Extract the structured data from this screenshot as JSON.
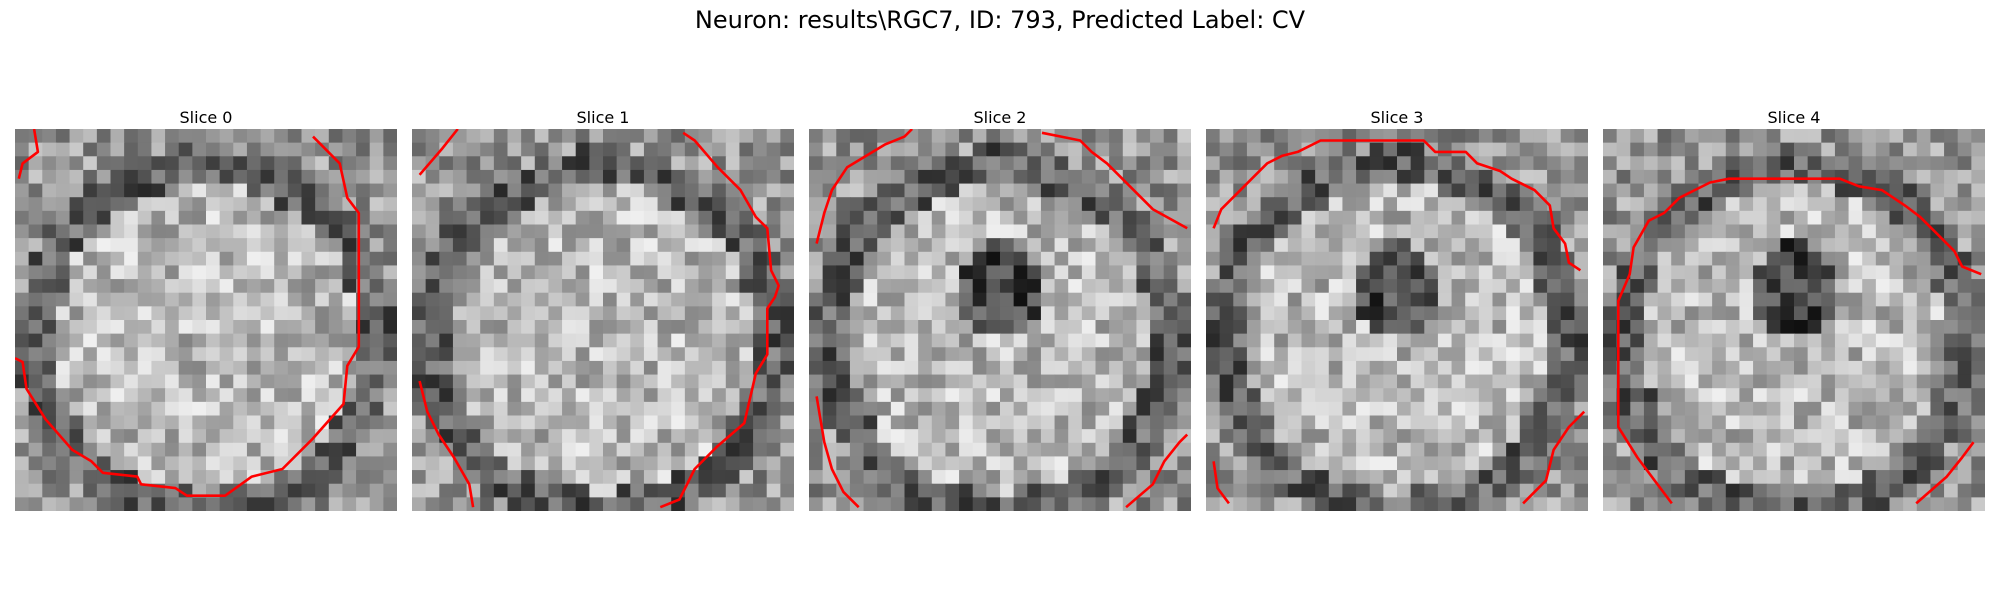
{
  "figure": {
    "title": "Neuron: results\\RGC7, ID: 793, Predicted Label: CV",
    "contour_color": "#ff0000",
    "colormap": "gray"
  },
  "slices": [
    {
      "title": "Slice 0",
      "seed": 11,
      "contour": [
        [
          [
            0.05,
            0.0
          ],
          [
            0.06,
            0.06
          ],
          [
            0.02,
            0.09
          ],
          [
            0.01,
            0.13
          ]
        ],
        [
          [
            0.78,
            0.02
          ],
          [
            0.85,
            0.09
          ],
          [
            0.87,
            0.18
          ],
          [
            0.9,
            0.22
          ],
          [
            0.9,
            0.57
          ],
          [
            0.87,
            0.62
          ],
          [
            0.86,
            0.72
          ],
          [
            0.78,
            0.81
          ],
          [
            0.7,
            0.89
          ],
          [
            0.62,
            0.91
          ],
          [
            0.55,
            0.96
          ],
          [
            0.45,
            0.96
          ],
          [
            0.42,
            0.94
          ],
          [
            0.33,
            0.93
          ],
          [
            0.32,
            0.91
          ],
          [
            0.23,
            0.9
          ],
          [
            0.2,
            0.87
          ],
          [
            0.15,
            0.84
          ],
          [
            0.08,
            0.76
          ],
          [
            0.03,
            0.68
          ],
          [
            0.02,
            0.61
          ],
          [
            0.0,
            0.6
          ]
        ]
      ]
    },
    {
      "title": "Slice 1",
      "seed": 23,
      "contour": [
        [
          [
            0.12,
            0.0
          ],
          [
            0.08,
            0.05
          ],
          [
            0.02,
            0.12
          ]
        ],
        [
          [
            0.71,
            0.01
          ],
          [
            0.74,
            0.03
          ],
          [
            0.8,
            0.1
          ],
          [
            0.86,
            0.16
          ],
          [
            0.9,
            0.23
          ],
          [
            0.93,
            0.26
          ],
          [
            0.94,
            0.37
          ],
          [
            0.96,
            0.41
          ],
          [
            0.95,
            0.44
          ],
          [
            0.93,
            0.47
          ],
          [
            0.93,
            0.59
          ],
          [
            0.9,
            0.64
          ],
          [
            0.87,
            0.77
          ],
          [
            0.8,
            0.83
          ],
          [
            0.74,
            0.89
          ],
          [
            0.7,
            0.97
          ],
          [
            0.65,
            0.99
          ]
        ],
        [
          [
            0.02,
            0.66
          ],
          [
            0.04,
            0.74
          ],
          [
            0.07,
            0.8
          ],
          [
            0.11,
            0.86
          ],
          [
            0.15,
            0.93
          ],
          [
            0.16,
            0.99
          ]
        ]
      ]
    },
    {
      "title": "Slice 2",
      "seed": 37,
      "contour": [
        [
          [
            0.02,
            0.3
          ],
          [
            0.04,
            0.22
          ],
          [
            0.06,
            0.16
          ],
          [
            0.1,
            0.1
          ],
          [
            0.15,
            0.07
          ],
          [
            0.2,
            0.04
          ],
          [
            0.25,
            0.02
          ],
          [
            0.27,
            0.0
          ]
        ],
        [
          [
            0.61,
            0.01
          ],
          [
            0.66,
            0.02
          ],
          [
            0.71,
            0.03
          ],
          [
            0.74,
            0.06
          ],
          [
            0.78,
            0.09
          ],
          [
            0.84,
            0.15
          ],
          [
            0.9,
            0.21
          ],
          [
            0.99,
            0.26
          ]
        ],
        [
          [
            0.02,
            0.7
          ],
          [
            0.04,
            0.82
          ],
          [
            0.06,
            0.89
          ],
          [
            0.09,
            0.95
          ],
          [
            0.13,
            0.99
          ]
        ],
        [
          [
            0.83,
            0.99
          ],
          [
            0.9,
            0.93
          ],
          [
            0.93,
            0.87
          ],
          [
            0.97,
            0.82
          ],
          [
            0.99,
            0.8
          ]
        ]
      ]
    },
    {
      "title": "Slice 3",
      "seed": 49,
      "contour": [
        [
          [
            0.02,
            0.26
          ],
          [
            0.04,
            0.21
          ],
          [
            0.08,
            0.17
          ],
          [
            0.12,
            0.13
          ],
          [
            0.16,
            0.09
          ],
          [
            0.2,
            0.07
          ],
          [
            0.24,
            0.06
          ],
          [
            0.3,
            0.03
          ],
          [
            0.44,
            0.03
          ],
          [
            0.57,
            0.03
          ],
          [
            0.6,
            0.06
          ],
          [
            0.68,
            0.06
          ],
          [
            0.71,
            0.09
          ],
          [
            0.77,
            0.11
          ],
          [
            0.8,
            0.13
          ],
          [
            0.86,
            0.16
          ],
          [
            0.9,
            0.2
          ],
          [
            0.91,
            0.26
          ],
          [
            0.94,
            0.3
          ],
          [
            0.95,
            0.35
          ],
          [
            0.98,
            0.37
          ]
        ],
        [
          [
            0.02,
            0.87
          ],
          [
            0.03,
            0.94
          ],
          [
            0.06,
            0.98
          ]
        ],
        [
          [
            0.83,
            0.98
          ],
          [
            0.89,
            0.92
          ],
          [
            0.91,
            0.84
          ],
          [
            0.95,
            0.78
          ],
          [
            0.99,
            0.74
          ]
        ]
      ]
    },
    {
      "title": "Slice 4",
      "seed": 61,
      "contour": [
        [
          [
            0.18,
            0.98
          ],
          [
            0.09,
            0.86
          ],
          [
            0.04,
            0.78
          ],
          [
            0.04,
            0.45
          ],
          [
            0.07,
            0.38
          ],
          [
            0.08,
            0.31
          ],
          [
            0.12,
            0.24
          ],
          [
            0.16,
            0.22
          ],
          [
            0.2,
            0.18
          ],
          [
            0.28,
            0.14
          ],
          [
            0.33,
            0.13
          ],
          [
            0.5,
            0.13
          ],
          [
            0.62,
            0.13
          ],
          [
            0.67,
            0.15
          ],
          [
            0.73,
            0.16
          ],
          [
            0.79,
            0.2
          ],
          [
            0.83,
            0.23
          ],
          [
            0.87,
            0.27
          ],
          [
            0.92,
            0.32
          ],
          [
            0.94,
            0.36
          ],
          [
            0.99,
            0.38
          ]
        ],
        [
          [
            0.82,
            0.98
          ],
          [
            0.9,
            0.91
          ],
          [
            0.94,
            0.86
          ],
          [
            0.97,
            0.82
          ]
        ]
      ]
    }
  ]
}
